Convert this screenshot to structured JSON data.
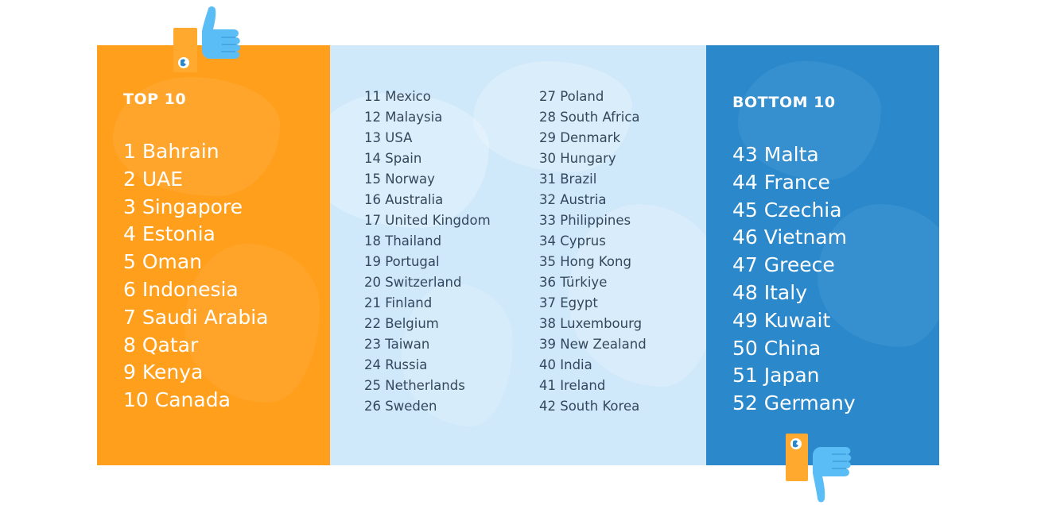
{
  "colors": {
    "top_panel": "#FF9F1C",
    "middle_panel": "#CFE8FA",
    "bottom_panel": "#2A88CB",
    "middle_text": "#35475C",
    "thumb_blue": "#5BBDF5",
    "thumb_orange": "#FFA92F"
  },
  "top_section": {
    "title": "TOP 10",
    "icon": "thumbs-up-icon",
    "items": [
      "1  Bahrain",
      "2 UAE",
      "3 Singapore",
      "4 Estonia",
      "5 Oman",
      "6 Indonesia",
      "7 Saudi Arabia",
      "8 Qatar",
      "9 Kenya",
      "10 Canada"
    ]
  },
  "middle_section": {
    "column_1": [
      "11 Mexico",
      "12 Malaysia",
      "13 USA",
      "14 Spain",
      "15 Norway",
      "16 Australia",
      "17 United Kingdom",
      "18 Thailand",
      "19 Portugal",
      "20 Switzerland",
      "21 Finland",
      "22 Belgium",
      "23 Taiwan",
      "24 Russia",
      "25 Netherlands",
      "26 Sweden"
    ],
    "column_2": [
      "27 Poland",
      "28 South Africa",
      "29 Denmark",
      "30 Hungary",
      "31 Brazil",
      "32 Austria",
      "33 Philippines",
      "34 Cyprus",
      "35 Hong Kong",
      "36 Türkiye",
      "37 Egypt",
      "38 Luxembourg",
      "39 New Zealand",
      "40 India",
      "41 Ireland",
      "42 South Korea"
    ]
  },
  "bottom_section": {
    "title": "BOTTOM 10",
    "icon": "thumbs-down-icon",
    "items": [
      "43 Malta",
      "44 France",
      "45 Czechia",
      "46 Vietnam",
      "47 Greece",
      "48 Italy",
      "49 Kuwait",
      "50 China",
      "51 Japan",
      "52 Germany"
    ]
  }
}
